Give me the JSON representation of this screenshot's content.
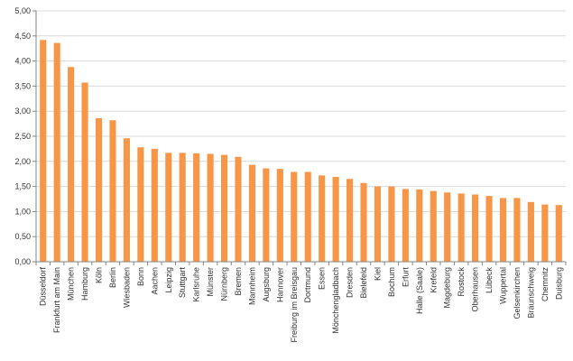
{
  "chart_data": {
    "type": "bar",
    "title": "",
    "xlabel": "",
    "ylabel": "",
    "ylim": [
      0,
      5
    ],
    "y_ticks": [
      "0,00",
      "0,50",
      "1,00",
      "1,50",
      "2,00",
      "2,50",
      "3,00",
      "3,50",
      "4,00",
      "4,50",
      "5,00"
    ],
    "y_tick_values": [
      0,
      0.5,
      1,
      1.5,
      2,
      2.5,
      3,
      3.5,
      4,
      4.5,
      5
    ],
    "grid": "horizontal",
    "legend": "none",
    "bar_color": "#F79646",
    "categories": [
      "Düsseldorf",
      "Frankfurt am Main",
      "München",
      "Hamburg",
      "Köln",
      "Berlin",
      "Wiesbaden",
      "Bonn",
      "Aachen",
      "Leipzig",
      "Stuttgart",
      "Karlsruhe",
      "Münster",
      "Nürnberg",
      "Bremen",
      "Mannheim",
      "Augsburg",
      "Hannover",
      "Freiburg im Breisgau",
      "Dortmund",
      "Essen",
      "Mönchengladbach",
      "Dresden",
      "Bielefeld",
      "Kiel",
      "Bochum",
      "Erfurt",
      "Halle (Saale)",
      "Krefeld",
      "Magdeburg",
      "Rostock",
      "Oberhausen",
      "Lübeck",
      "Wuppertal",
      "Gelsenkirchen",
      "Braunschweig",
      "Chemnitz",
      "Duisburg"
    ],
    "values": [
      4.42,
      4.36,
      3.88,
      3.57,
      2.86,
      2.82,
      2.46,
      2.28,
      2.25,
      2.17,
      2.17,
      2.16,
      2.15,
      2.13,
      2.09,
      1.93,
      1.86,
      1.85,
      1.79,
      1.79,
      1.72,
      1.69,
      1.65,
      1.57,
      1.5,
      1.5,
      1.45,
      1.44,
      1.41,
      1.38,
      1.36,
      1.34,
      1.31,
      1.27,
      1.27,
      1.19,
      1.14,
      1.13
    ]
  }
}
